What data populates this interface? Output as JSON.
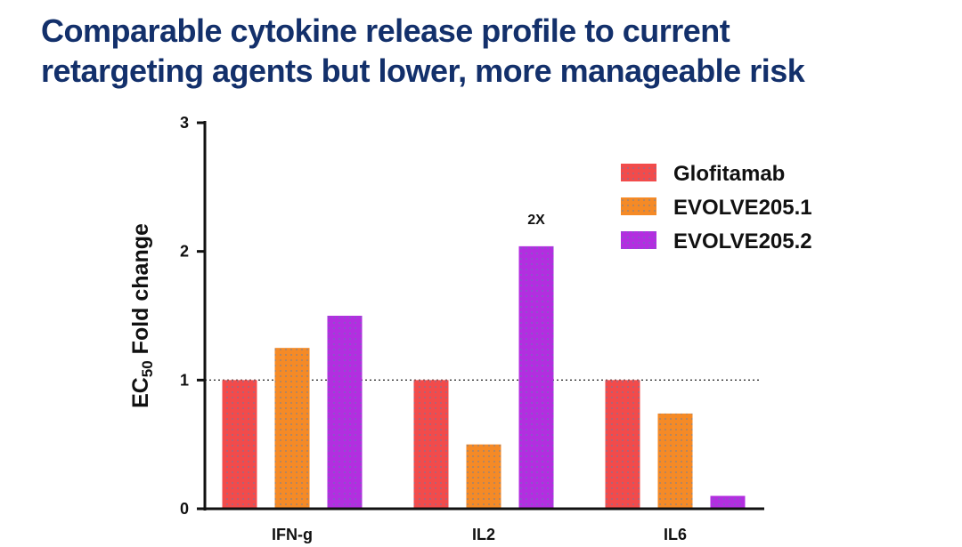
{
  "slide": {
    "title_line1": "Comparable cytokine release profile to current",
    "title_line2": "retargeting agents but lower, more manageable risk"
  },
  "chart_data": {
    "type": "bar",
    "title": "",
    "xlabel": "",
    "ylabel": "EC50 Fold change",
    "ylabel_main": "EC",
    "ylabel_sub": "50",
    "ylabel_rest": " Fold change",
    "categories": [
      "IFN-g",
      "IL2",
      "IL6"
    ],
    "series": [
      {
        "name": "Glofitamab",
        "values": [
          1.0,
          1.0,
          1.0
        ],
        "color": "#f24b4b"
      },
      {
        "name": "EVOLVE205.1",
        "values": [
          1.25,
          0.5,
          0.74
        ],
        "color": "#f58a26"
      },
      {
        "name": "EVOLVE205.2",
        "values": [
          1.5,
          2.04,
          0.1
        ],
        "color": "#b32ee0"
      }
    ],
    "ylim": [
      0,
      3
    ],
    "yticks": [
      0,
      1,
      2,
      3
    ],
    "reference_line": 1,
    "annotations": [
      {
        "text": "2X",
        "category": "IL2",
        "series": "EVOLVE205.2"
      }
    ],
    "legend_position": "top-right",
    "grid": false
  }
}
